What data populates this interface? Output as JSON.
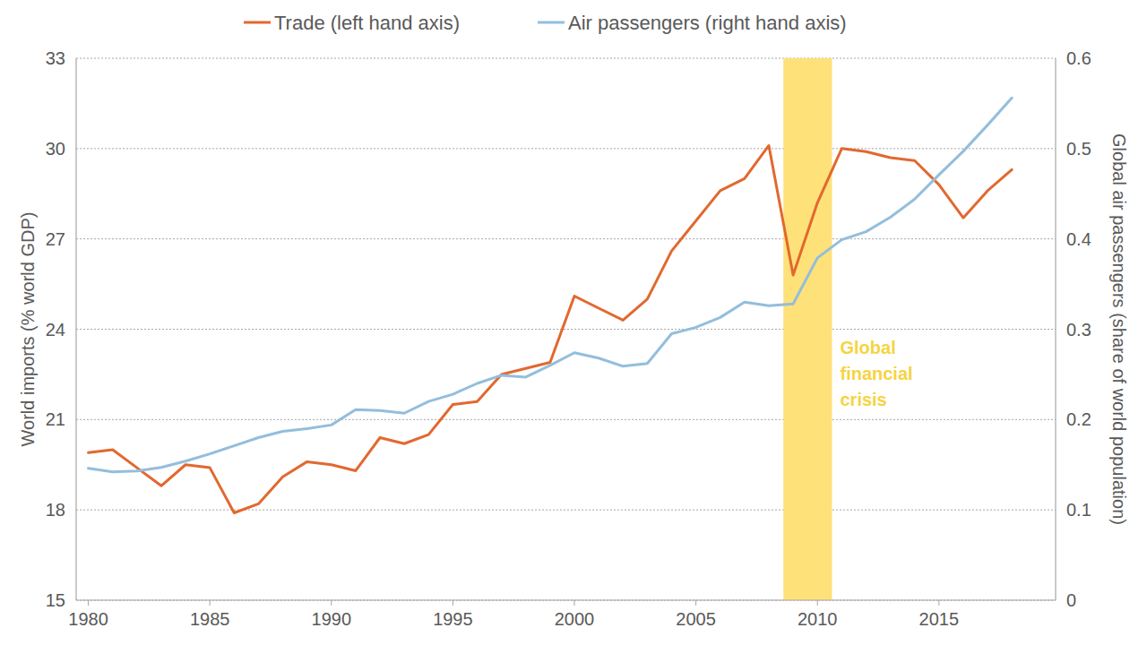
{
  "chart_data": {
    "type": "line",
    "x": [
      1980,
      1981,
      1982,
      1983,
      1984,
      1985,
      1986,
      1987,
      1988,
      1989,
      1990,
      1991,
      1992,
      1993,
      1994,
      1995,
      1996,
      1997,
      1998,
      1999,
      2000,
      2001,
      2002,
      2003,
      2004,
      2005,
      2006,
      2007,
      2008,
      2009,
      2010,
      2011,
      2012,
      2013,
      2014,
      2015,
      2016,
      2017,
      2018
    ],
    "series": [
      {
        "name": "Trade (left hand axis)",
        "color": "#E2682F",
        "axis": "y",
        "values": [
          19.9,
          20.0,
          19.4,
          18.8,
          19.5,
          19.4,
          17.9,
          18.2,
          19.1,
          19.6,
          19.5,
          19.3,
          20.4,
          20.2,
          20.5,
          21.5,
          21.6,
          22.5,
          22.7,
          22.9,
          25.1,
          24.7,
          24.3,
          25.0,
          26.6,
          27.6,
          28.6,
          29.0,
          30.1,
          25.8,
          28.2,
          30.0,
          29.9,
          29.7,
          29.6,
          28.8,
          27.7,
          28.6,
          29.3
        ]
      },
      {
        "name": "Air passengers (right hand axis)",
        "color": "#93BEDC",
        "axis": "y2",
        "values": [
          0.146,
          0.142,
          0.143,
          0.147,
          0.154,
          0.162,
          0.171,
          0.18,
          0.187,
          0.19,
          0.194,
          0.211,
          0.21,
          0.207,
          0.22,
          0.228,
          0.24,
          0.249,
          0.247,
          0.26,
          0.274,
          0.268,
          0.259,
          0.262,
          0.295,
          0.302,
          0.313,
          0.33,
          0.326,
          0.328,
          0.379,
          0.399,
          0.408,
          0.424,
          0.444,
          0.471,
          0.497,
          0.526,
          0.556
        ]
      }
    ],
    "y_label": "World imports (% world GDP)",
    "y2_label": "Global air passengers (share of world population)",
    "xlim": [
      1979.5,
      2019.8
    ],
    "xticks": [
      1980,
      1985,
      1990,
      1995,
      2000,
      2005,
      2010,
      2015
    ],
    "ylim": [
      15,
      33
    ],
    "yticks": [
      15,
      18,
      21,
      24,
      27,
      30,
      33
    ],
    "y2lim": [
      0,
      0.6
    ],
    "y2ticks": [
      0,
      0.1,
      0.2,
      0.3,
      0.4,
      0.5,
      0.6
    ],
    "grid": true,
    "legend": "top",
    "annotations": [
      {
        "text": "Global financial crisis",
        "x_range": [
          2008.6,
          2010.6
        ],
        "color": "#FFE17A"
      }
    ]
  }
}
